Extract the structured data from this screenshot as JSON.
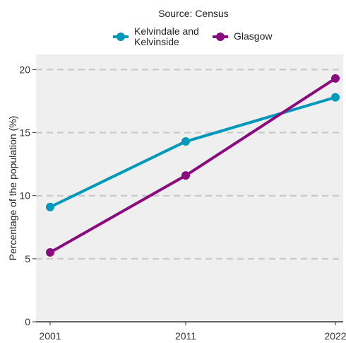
{
  "chart_data": {
    "type": "line",
    "subtitle": "Source: Census",
    "ylabel": "Percentage of the population (%)",
    "xlabel": "",
    "x": [
      "2001",
      "2011",
      "2022"
    ],
    "ylim": [
      0,
      21.2
    ],
    "yticks": [
      0,
      5,
      10,
      15,
      20
    ],
    "grid": "horizontal-dashed",
    "legend_position": "top",
    "series": [
      {
        "name": "Kelvindale and Kelvinside",
        "name_lines": [
          "Kelvindale and",
          "Kelvinside"
        ],
        "color": "#0099bb",
        "values": [
          9.1,
          14.3,
          17.8
        ]
      },
      {
        "name": "Glasgow",
        "name_lines": [
          "Glasgow"
        ],
        "color": "#8b0a7f",
        "values": [
          5.5,
          11.6,
          19.3
        ]
      }
    ]
  }
}
